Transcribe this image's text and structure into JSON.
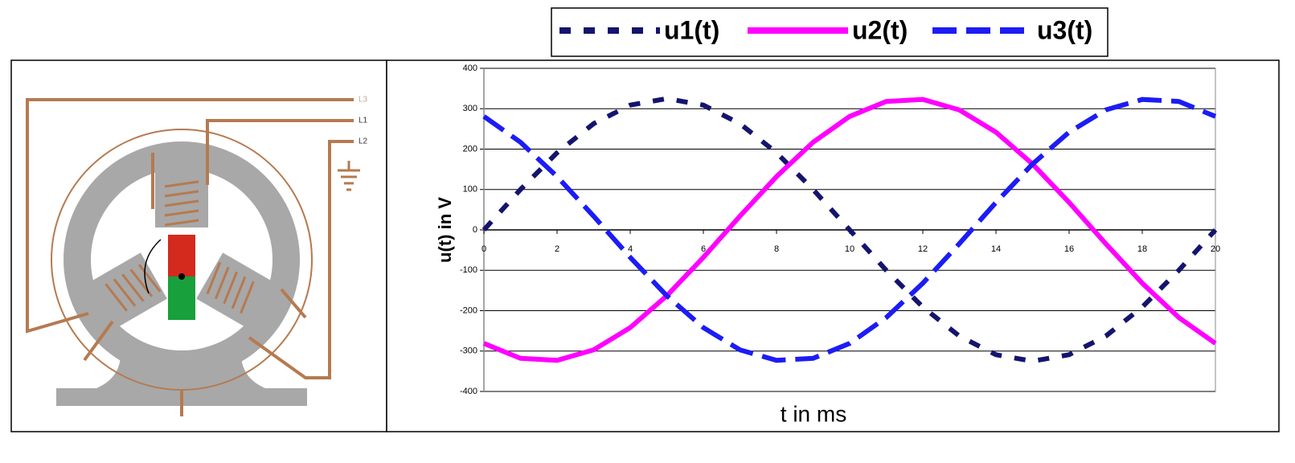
{
  "diagram": {
    "labels": [
      "L3",
      "L1",
      "L2"
    ]
  },
  "chart_data": {
    "type": "line",
    "x_label": "t in ms",
    "y_label": "u(t) in V",
    "x": [
      0,
      1,
      2,
      3,
      4,
      5,
      6,
      7,
      8,
      9,
      10,
      11,
      12,
      13,
      14,
      15,
      16,
      17,
      18,
      19,
      20
    ],
    "series": [
      {
        "name": "u1(t)",
        "color": "#14146e",
        "dash": "14,16",
        "values": [
          0,
          100,
          191,
          263,
          309,
          325,
          309,
          263,
          191,
          100,
          0,
          -100,
          -191,
          -263,
          -309,
          -325,
          -309,
          -263,
          -191,
          -100,
          0
        ]
      },
      {
        "name": "u2(t)",
        "color": "#ff00ff",
        "dash": "none",
        "values": [
          -281,
          -318,
          -323,
          -297,
          -242,
          -163,
          -68,
          34,
          132,
          217,
          281,
          318,
          323,
          297,
          242,
          163,
          68,
          -34,
          -132,
          -217,
          -281
        ]
      },
      {
        "name": "u3(t)",
        "color": "#1c1cf5",
        "dash": "30,12",
        "values": [
          281,
          217,
          132,
          34,
          -68,
          -163,
          -242,
          -297,
          -323,
          -318,
          -281,
          -217,
          -132,
          -34,
          68,
          163,
          242,
          297,
          323,
          318,
          281
        ]
      }
    ],
    "xlim": [
      0,
      20
    ],
    "xticks": [
      0,
      2,
      4,
      6,
      8,
      10,
      12,
      14,
      16,
      18,
      20
    ],
    "ylim": [
      -400,
      400
    ],
    "yticks": [
      -400,
      -300,
      -200,
      -100,
      0,
      100,
      200,
      300,
      400
    ],
    "grid": true,
    "legend": "top"
  }
}
